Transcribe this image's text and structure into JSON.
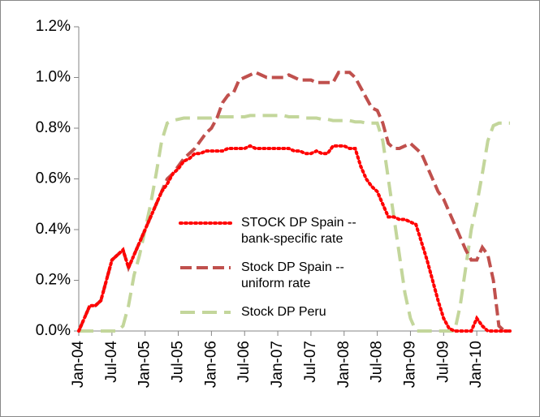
{
  "chart_data": {
    "type": "line",
    "categories": [
      "Jan-04",
      null,
      null,
      null,
      null,
      null,
      "Jul-04",
      null,
      null,
      null,
      null,
      null,
      "Jan-05",
      null,
      null,
      null,
      null,
      null,
      "Jul-05",
      null,
      null,
      null,
      null,
      null,
      "Jan-06",
      null,
      null,
      null,
      null,
      null,
      "Jul-06",
      null,
      null,
      null,
      null,
      null,
      "Jan-07",
      null,
      null,
      null,
      null,
      null,
      "Jul-07",
      null,
      null,
      null,
      null,
      null,
      "Jan-08",
      null,
      null,
      null,
      null,
      null,
      "Jul-08",
      null,
      null,
      null,
      null,
      null,
      "Jan-09",
      null,
      null,
      null,
      null,
      null,
      "Jul-09",
      null,
      null,
      null,
      null,
      null,
      "Jan-10",
      null,
      null,
      null,
      null,
      null,
      null
    ],
    "series": [
      {
        "name": "STOCK DP Spain -- bank-specific rate",
        "color": "#ff0000",
        "dash": "dot",
        "values": [
          0,
          0.05,
          0.1,
          0.1,
          0.12,
          0.2,
          0.28,
          0.3,
          0.32,
          0.25,
          0.3,
          0.35,
          0.4,
          0.45,
          0.5,
          0.55,
          0.58,
          0.62,
          0.64,
          0.67,
          0.68,
          0.7,
          0.7,
          0.71,
          0.71,
          0.71,
          0.71,
          0.72,
          0.72,
          0.72,
          0.72,
          0.73,
          0.72,
          0.72,
          0.72,
          0.72,
          0.72,
          0.72,
          0.72,
          0.71,
          0.71,
          0.7,
          0.7,
          0.71,
          0.7,
          0.7,
          0.73,
          0.73,
          0.73,
          0.72,
          0.72,
          0.65,
          0.6,
          0.57,
          0.55,
          0.5,
          0.45,
          0.45,
          0.44,
          0.44,
          0.43,
          0.42,
          0.35,
          0.28,
          0.2,
          0.12,
          0.05,
          0.01,
          0,
          0,
          0,
          0,
          0.05,
          0.02,
          0,
          0,
          0,
          0,
          0
        ]
      },
      {
        "name": "Stock DP Spain -- uniform rate",
        "color": "#c0504d",
        "dash": "dash",
        "values": [
          0,
          0.05,
          0.1,
          0.1,
          0.12,
          0.2,
          0.28,
          0.3,
          0.32,
          0.25,
          0.3,
          0.35,
          0.4,
          0.45,
          0.5,
          0.55,
          0.6,
          0.62,
          0.65,
          0.68,
          0.7,
          0.72,
          0.75,
          0.78,
          0.8,
          0.84,
          0.9,
          0.93,
          0.94,
          0.99,
          1.0,
          1.01,
          1.02,
          1.01,
          1.0,
          1.0,
          1.0,
          1.0,
          1.01,
          1.0,
          0.99,
          0.99,
          0.99,
          0.98,
          0.98,
          0.98,
          0.98,
          1.02,
          1.02,
          1.02,
          1.0,
          0.96,
          0.92,
          0.88,
          0.87,
          0.82,
          0.74,
          0.72,
          0.72,
          0.73,
          0.74,
          0.72,
          0.7,
          0.65,
          0.6,
          0.55,
          0.52,
          0.47,
          0.42,
          0.37,
          0.32,
          0.28,
          0.28,
          0.33,
          0.3,
          0.2,
          0.02,
          0,
          0
        ]
      },
      {
        "name": "Stock DP Peru",
        "color": "#c3d69b",
        "dash": "longdash",
        "values": [
          0,
          0,
          0,
          0,
          0,
          0,
          0,
          0,
          0.02,
          0.1,
          0.22,
          0.3,
          0.4,
          0.5,
          0.62,
          0.75,
          0.82,
          0.83,
          0.835,
          0.84,
          0.84,
          0.84,
          0.84,
          0.84,
          0.84,
          0.845,
          0.845,
          0.845,
          0.845,
          0.845,
          0.845,
          0.85,
          0.85,
          0.85,
          0.85,
          0.85,
          0.85,
          0.85,
          0.845,
          0.845,
          0.845,
          0.84,
          0.84,
          0.84,
          0.835,
          0.835,
          0.83,
          0.83,
          0.83,
          0.83,
          0.825,
          0.825,
          0.82,
          0.82,
          0.82,
          0.75,
          0.6,
          0.45,
          0.3,
          0.15,
          0.05,
          0,
          0,
          0,
          0,
          0,
          0,
          0,
          0,
          0.1,
          0.25,
          0.4,
          0.5,
          0.62,
          0.75,
          0.81,
          0.82,
          0.82,
          0.82
        ]
      }
    ],
    "ylim": [
      0,
      1.2
    ],
    "yticks": [
      {
        "value": 0,
        "label": "0.0%"
      },
      {
        "value": 0.2,
        "label": "0.2%"
      },
      {
        "value": 0.4,
        "label": "0.4%"
      },
      {
        "value": 0.6,
        "label": "0.6%"
      },
      {
        "value": 0.8,
        "label": "0.8%"
      },
      {
        "value": 1.0,
        "label": "1.0%"
      },
      {
        "value": 1.2,
        "label": "1.2%"
      }
    ],
    "legend": "inside"
  }
}
